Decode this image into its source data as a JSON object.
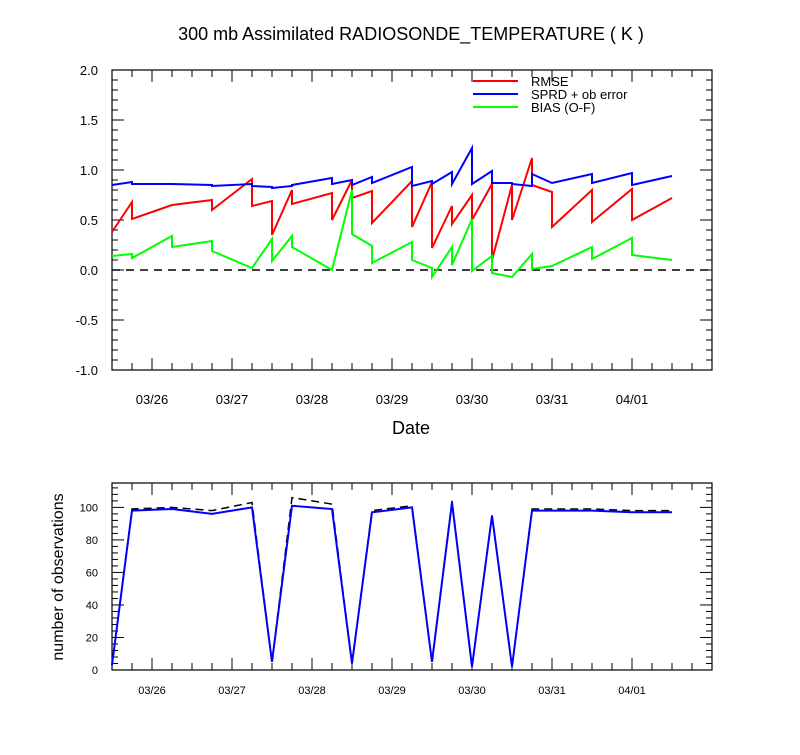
{
  "chart_data": [
    {
      "type": "line",
      "title": "300 mb Assimilated RADIOSONDE_TEMPERATURE ( K )",
      "xlabel": "Date",
      "ylabel": "",
      "ylim": [
        -1.0,
        2.0
      ],
      "yticks": [
        "-1.0",
        "-0.5",
        "0.0",
        "0.5",
        "1.0",
        "1.5",
        "2.0"
      ],
      "xlim": [
        0,
        7.5
      ],
      "xticks": [
        {
          "x": 0.5,
          "label": "03/26"
        },
        {
          "x": 1.5,
          "label": "03/27"
        },
        {
          "x": 2.5,
          "label": "03/28"
        },
        {
          "x": 3.5,
          "label": "03/29"
        },
        {
          "x": 4.5,
          "label": "03/30"
        },
        {
          "x": 5.5,
          "label": "03/31"
        },
        {
          "x": 6.5,
          "label": "04/01"
        }
      ],
      "legend": "top-right",
      "reference_line": {
        "y": 0.0,
        "style": "dashed",
        "color": "#000000"
      },
      "series": [
        {
          "name": "RMSE",
          "color": "#ff0000",
          "points": [
            [
              0.0,
              0.38
            ],
            [
              0.25,
              0.68
            ],
            [
              0.25,
              0.51
            ],
            [
              0.75,
              0.65
            ],
            [
              1.25,
              0.7
            ],
            [
              1.25,
              0.6
            ],
            [
              1.75,
              0.91
            ],
            [
              1.75,
              0.64
            ],
            [
              2.0,
              0.69
            ],
            [
              2.0,
              0.35
            ],
            [
              2.25,
              0.8
            ],
            [
              2.25,
              0.66
            ],
            [
              2.75,
              0.77
            ],
            [
              2.75,
              0.5
            ],
            [
              3.0,
              0.9
            ],
            [
              3.0,
              0.72
            ],
            [
              3.25,
              0.79
            ],
            [
              3.25,
              0.47
            ],
            [
              3.75,
              0.89
            ],
            [
              3.75,
              0.43
            ],
            [
              4.0,
              0.88
            ],
            [
              4.0,
              0.22
            ],
            [
              4.25,
              0.64
            ],
            [
              4.25,
              0.46
            ],
            [
              4.5,
              0.75
            ],
            [
              4.5,
              0.5
            ],
            [
              4.75,
              0.86
            ],
            [
              4.75,
              0.1
            ],
            [
              5.0,
              0.85
            ],
            [
              5.0,
              0.5
            ],
            [
              5.25,
              1.12
            ],
            [
              5.25,
              0.85
            ],
            [
              5.5,
              0.78
            ],
            [
              5.5,
              0.43
            ],
            [
              6.0,
              0.8
            ],
            [
              6.0,
              0.48
            ],
            [
              6.5,
              0.81
            ],
            [
              6.5,
              0.5
            ],
            [
              7.0,
              0.72
            ]
          ]
        },
        {
          "name": "SPRD + ob error",
          "color": "#0000ff",
          "points": [
            [
              0.0,
              0.85
            ],
            [
              0.25,
              0.88
            ],
            [
              0.25,
              0.86
            ],
            [
              0.75,
              0.86
            ],
            [
              1.25,
              0.85
            ],
            [
              1.25,
              0.84
            ],
            [
              1.75,
              0.86
            ],
            [
              1.75,
              0.84
            ],
            [
              2.0,
              0.83
            ],
            [
              2.0,
              0.82
            ],
            [
              2.25,
              0.84
            ],
            [
              2.25,
              0.85
            ],
            [
              2.75,
              0.92
            ],
            [
              2.75,
              0.86
            ],
            [
              3.0,
              0.9
            ],
            [
              3.0,
              0.85
            ],
            [
              3.25,
              0.93
            ],
            [
              3.25,
              0.87
            ],
            [
              3.75,
              1.03
            ],
            [
              3.75,
              0.84
            ],
            [
              4.0,
              0.89
            ],
            [
              4.0,
              0.86
            ],
            [
              4.25,
              0.98
            ],
            [
              4.25,
              0.86
            ],
            [
              4.5,
              1.22
            ],
            [
              4.5,
              0.86
            ],
            [
              4.75,
              0.99
            ],
            [
              4.75,
              0.87
            ],
            [
              5.0,
              0.87
            ],
            [
              5.0,
              0.86
            ],
            [
              5.25,
              0.84
            ],
            [
              5.25,
              0.96
            ],
            [
              5.5,
              0.87
            ],
            [
              5.5,
              0.87
            ],
            [
              6.0,
              0.96
            ],
            [
              6.0,
              0.87
            ],
            [
              6.5,
              0.97
            ],
            [
              6.5,
              0.85
            ],
            [
              7.0,
              0.94
            ]
          ]
        },
        {
          "name": "BIAS (O-F)",
          "color": "#00ff00",
          "points": [
            [
              0.0,
              0.14
            ],
            [
              0.25,
              0.16
            ],
            [
              0.25,
              0.12
            ],
            [
              0.75,
              0.34
            ],
            [
              0.75,
              0.23
            ],
            [
              1.25,
              0.29
            ],
            [
              1.25,
              0.19
            ],
            [
              1.75,
              0.02
            ],
            [
              2.0,
              0.31
            ],
            [
              2.0,
              0.09
            ],
            [
              2.25,
              0.34
            ],
            [
              2.25,
              0.23
            ],
            [
              2.75,
              0.0
            ],
            [
              3.0,
              0.8
            ],
            [
              3.0,
              0.36
            ],
            [
              3.25,
              0.24
            ],
            [
              3.25,
              0.07
            ],
            [
              3.75,
              0.28
            ],
            [
              3.75,
              0.1
            ],
            [
              4.0,
              0.02
            ],
            [
              4.0,
              -0.07
            ],
            [
              4.25,
              0.23
            ],
            [
              4.25,
              0.05
            ],
            [
              4.5,
              0.51
            ],
            [
              4.5,
              -0.01
            ],
            [
              4.75,
              0.14
            ],
            [
              4.75,
              -0.03
            ],
            [
              5.0,
              -0.07
            ],
            [
              5.25,
              0.16
            ],
            [
              5.25,
              0.01
            ],
            [
              5.5,
              0.04
            ],
            [
              6.0,
              0.23
            ],
            [
              6.0,
              0.11
            ],
            [
              6.5,
              0.32
            ],
            [
              6.5,
              0.15
            ],
            [
              7.0,
              0.1
            ]
          ]
        }
      ]
    },
    {
      "type": "line",
      "title": "",
      "xlabel": "",
      "ylabel": "number of observations",
      "ylim": [
        0,
        115
      ],
      "yticks": [
        "0",
        "20",
        "40",
        "60",
        "80",
        "100"
      ],
      "xlim": [
        0,
        7.5
      ],
      "xticks": [
        {
          "x": 0.5,
          "label": "03/26"
        },
        {
          "x": 1.5,
          "label": "03/27"
        },
        {
          "x": 2.5,
          "label": "03/28"
        },
        {
          "x": 3.5,
          "label": "03/29"
        },
        {
          "x": 4.5,
          "label": "03/30"
        },
        {
          "x": 5.5,
          "label": "03/31"
        },
        {
          "x": 6.5,
          "label": "04/01"
        }
      ],
      "series": [
        {
          "name": "",
          "color": "#000000",
          "style": "dashed",
          "points": [
            [
              0.0,
              3
            ],
            [
              0.25,
              99
            ],
            [
              0.75,
              100
            ],
            [
              1.25,
              98
            ],
            [
              1.75,
              103
            ],
            [
              2.0,
              5
            ],
            [
              2.25,
              106
            ],
            [
              2.75,
              102
            ],
            [
              3.0,
              4
            ],
            [
              3.25,
              98
            ],
            [
              3.75,
              101
            ],
            [
              4.0,
              5
            ],
            [
              4.25,
              104
            ],
            [
              4.5,
              2
            ],
            [
              4.75,
              95
            ],
            [
              5.0,
              2
            ],
            [
              5.25,
              99
            ],
            [
              6.0,
              99
            ],
            [
              6.5,
              98
            ],
            [
              7.0,
              98
            ]
          ]
        },
        {
          "name": "",
          "color": "#0000ff",
          "style": "solid",
          "points": [
            [
              0.0,
              3
            ],
            [
              0.25,
              98
            ],
            [
              0.75,
              99
            ],
            [
              1.25,
              96
            ],
            [
              1.75,
              100
            ],
            [
              2.0,
              5
            ],
            [
              2.25,
              101
            ],
            [
              2.75,
              99
            ],
            [
              3.0,
              4
            ],
            [
              3.25,
              97
            ],
            [
              3.75,
              100
            ],
            [
              4.0,
              5
            ],
            [
              4.25,
              103
            ],
            [
              4.5,
              2
            ],
            [
              4.75,
              95
            ],
            [
              5.0,
              2
            ],
            [
              5.25,
              98
            ],
            [
              6.0,
              98
            ],
            [
              6.5,
              97
            ],
            [
              7.0,
              97
            ]
          ]
        }
      ]
    }
  ]
}
